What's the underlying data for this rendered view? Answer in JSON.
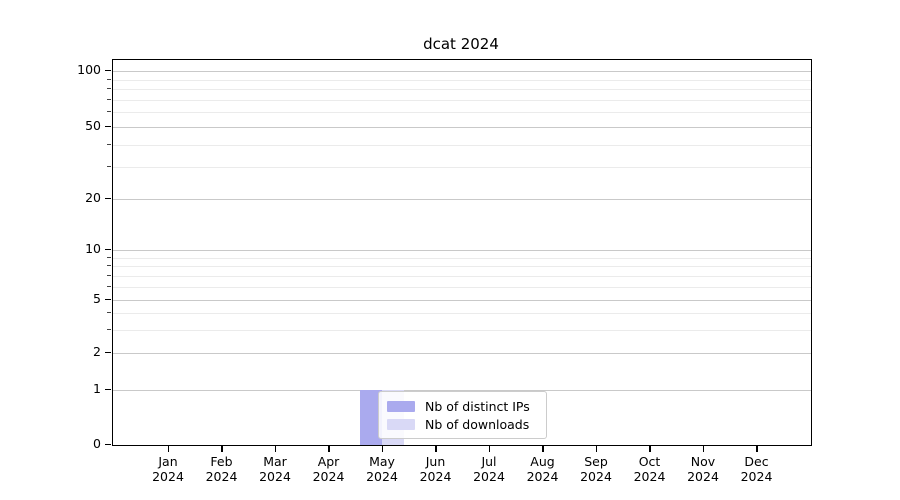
{
  "chart_data": {
    "type": "bar",
    "title": "dcat 2024",
    "categories": [
      "Jan",
      "Feb",
      "Mar",
      "Apr",
      "May",
      "Jun",
      "Jul",
      "Aug",
      "Sep",
      "Oct",
      "Nov",
      "Dec"
    ],
    "category_year": "2024",
    "series": [
      {
        "name": "Nb of distinct IPs",
        "color": "#aaaaee",
        "values": [
          0,
          0,
          0,
          0,
          1,
          0,
          0,
          0,
          0,
          0,
          0,
          0
        ]
      },
      {
        "name": "Nb of downloads",
        "color": "#d9d9f6",
        "values": [
          0,
          0,
          0,
          0,
          1,
          0,
          0,
          0,
          0,
          0,
          0,
          0
        ]
      }
    ],
    "xlabel": "",
    "ylabel": "",
    "y_scale": "symlog",
    "y_ticks": [
      0,
      1,
      2,
      5,
      10,
      20,
      50,
      100
    ],
    "y_minor_ticks": [
      3,
      4,
      6,
      7,
      8,
      9,
      30,
      40,
      60,
      70,
      80,
      90
    ],
    "ylim": [
      0,
      115
    ],
    "grid": "horizontal major and minor gridlines",
    "legend_position": "inside plot, lower left-of-center",
    "colors": {
      "grid_major": "#c9c9c9",
      "grid_minor": "#ebebeb",
      "spine": "#000000",
      "background": "#ffffff"
    }
  }
}
